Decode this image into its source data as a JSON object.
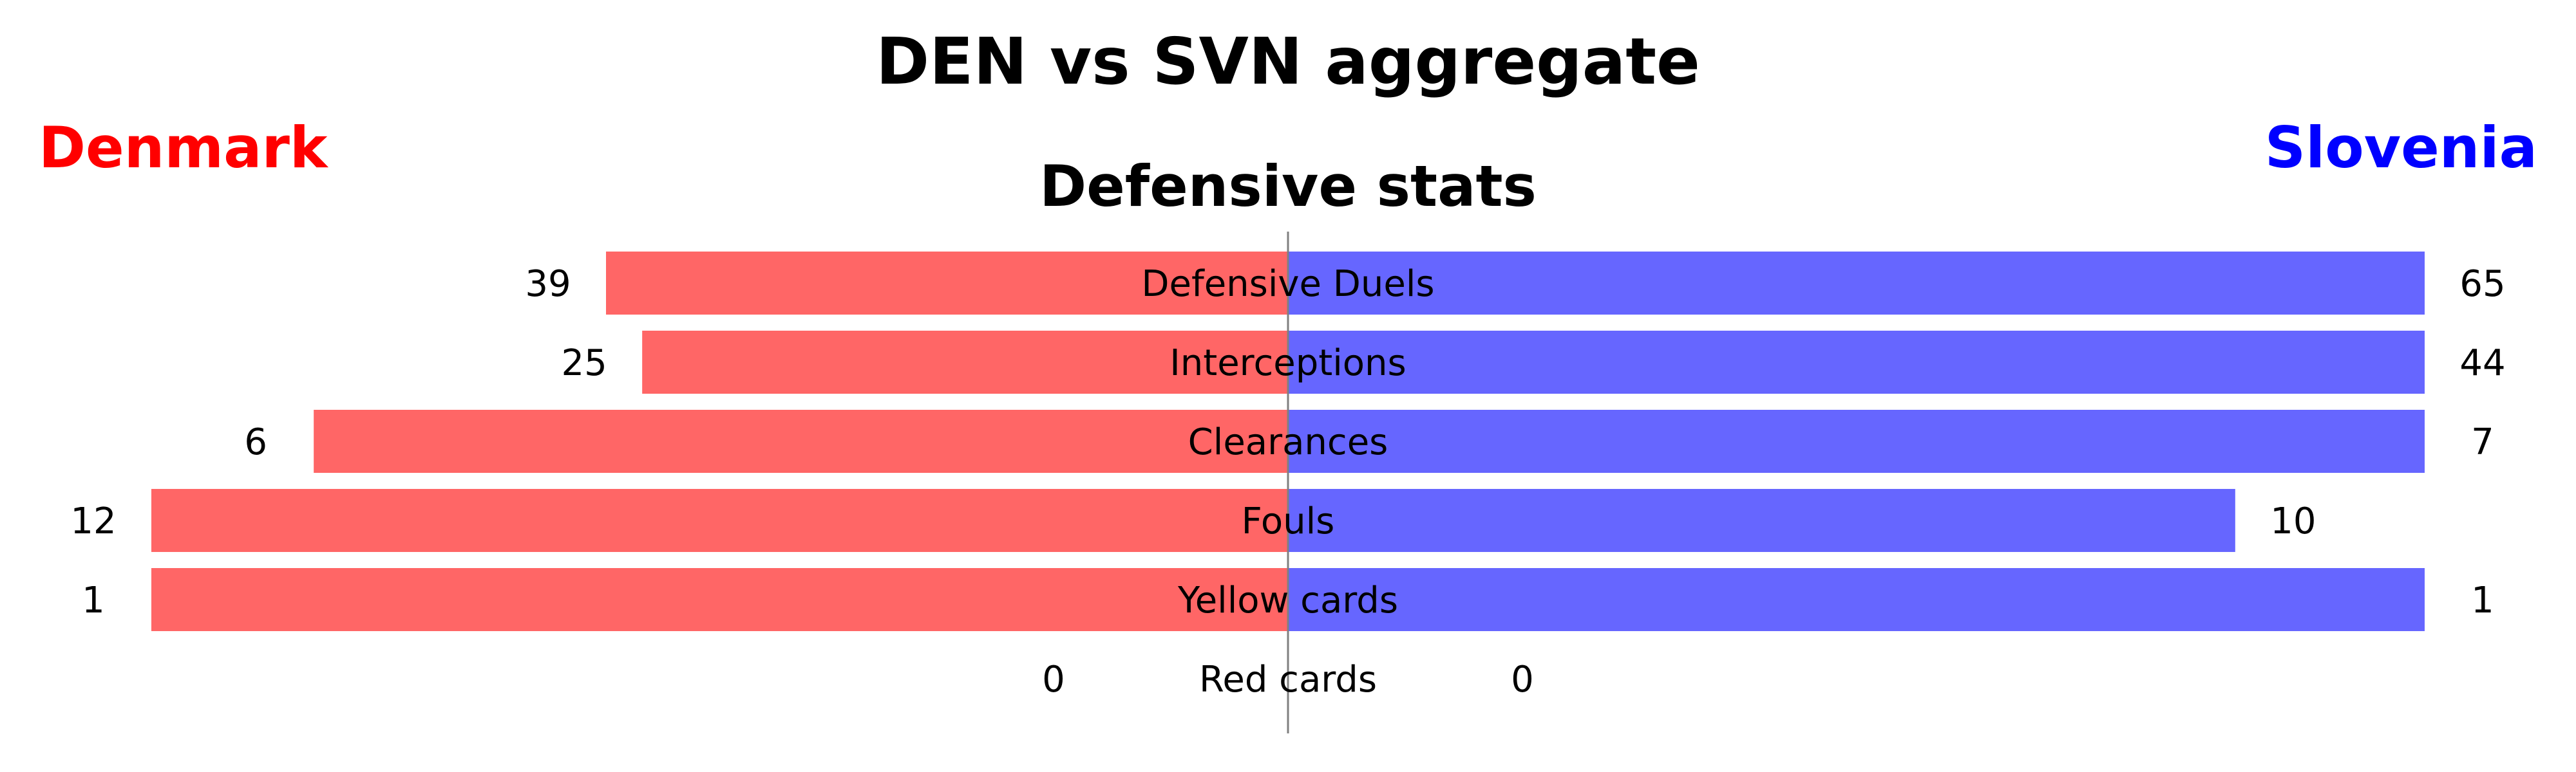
{
  "title": "DEN vs SVN aggregate",
  "chart_data": {
    "type": "bar",
    "orientation": "horizontal-butterfly",
    "title": "DEN vs SVN aggregate",
    "subtitle": "Defensive stats",
    "grid": false,
    "normalization": "each row scaled to the larger of the two teams' values",
    "categories": [
      "Defensive Duels",
      "Interceptions",
      "Clearances",
      "Fouls",
      "Yellow cards",
      "Red cards"
    ],
    "series": [
      {
        "name": "Denmark",
        "side": "left",
        "color": "#ff6666",
        "label_color": "#ff0000",
        "values": [
          39,
          25,
          6,
          12,
          1,
          0
        ]
      },
      {
        "name": "Slovenia",
        "side": "right",
        "color": "#6666ff",
        "label_color": "#0000ff",
        "values": [
          65,
          44,
          7,
          10,
          1,
          0
        ]
      }
    ]
  }
}
